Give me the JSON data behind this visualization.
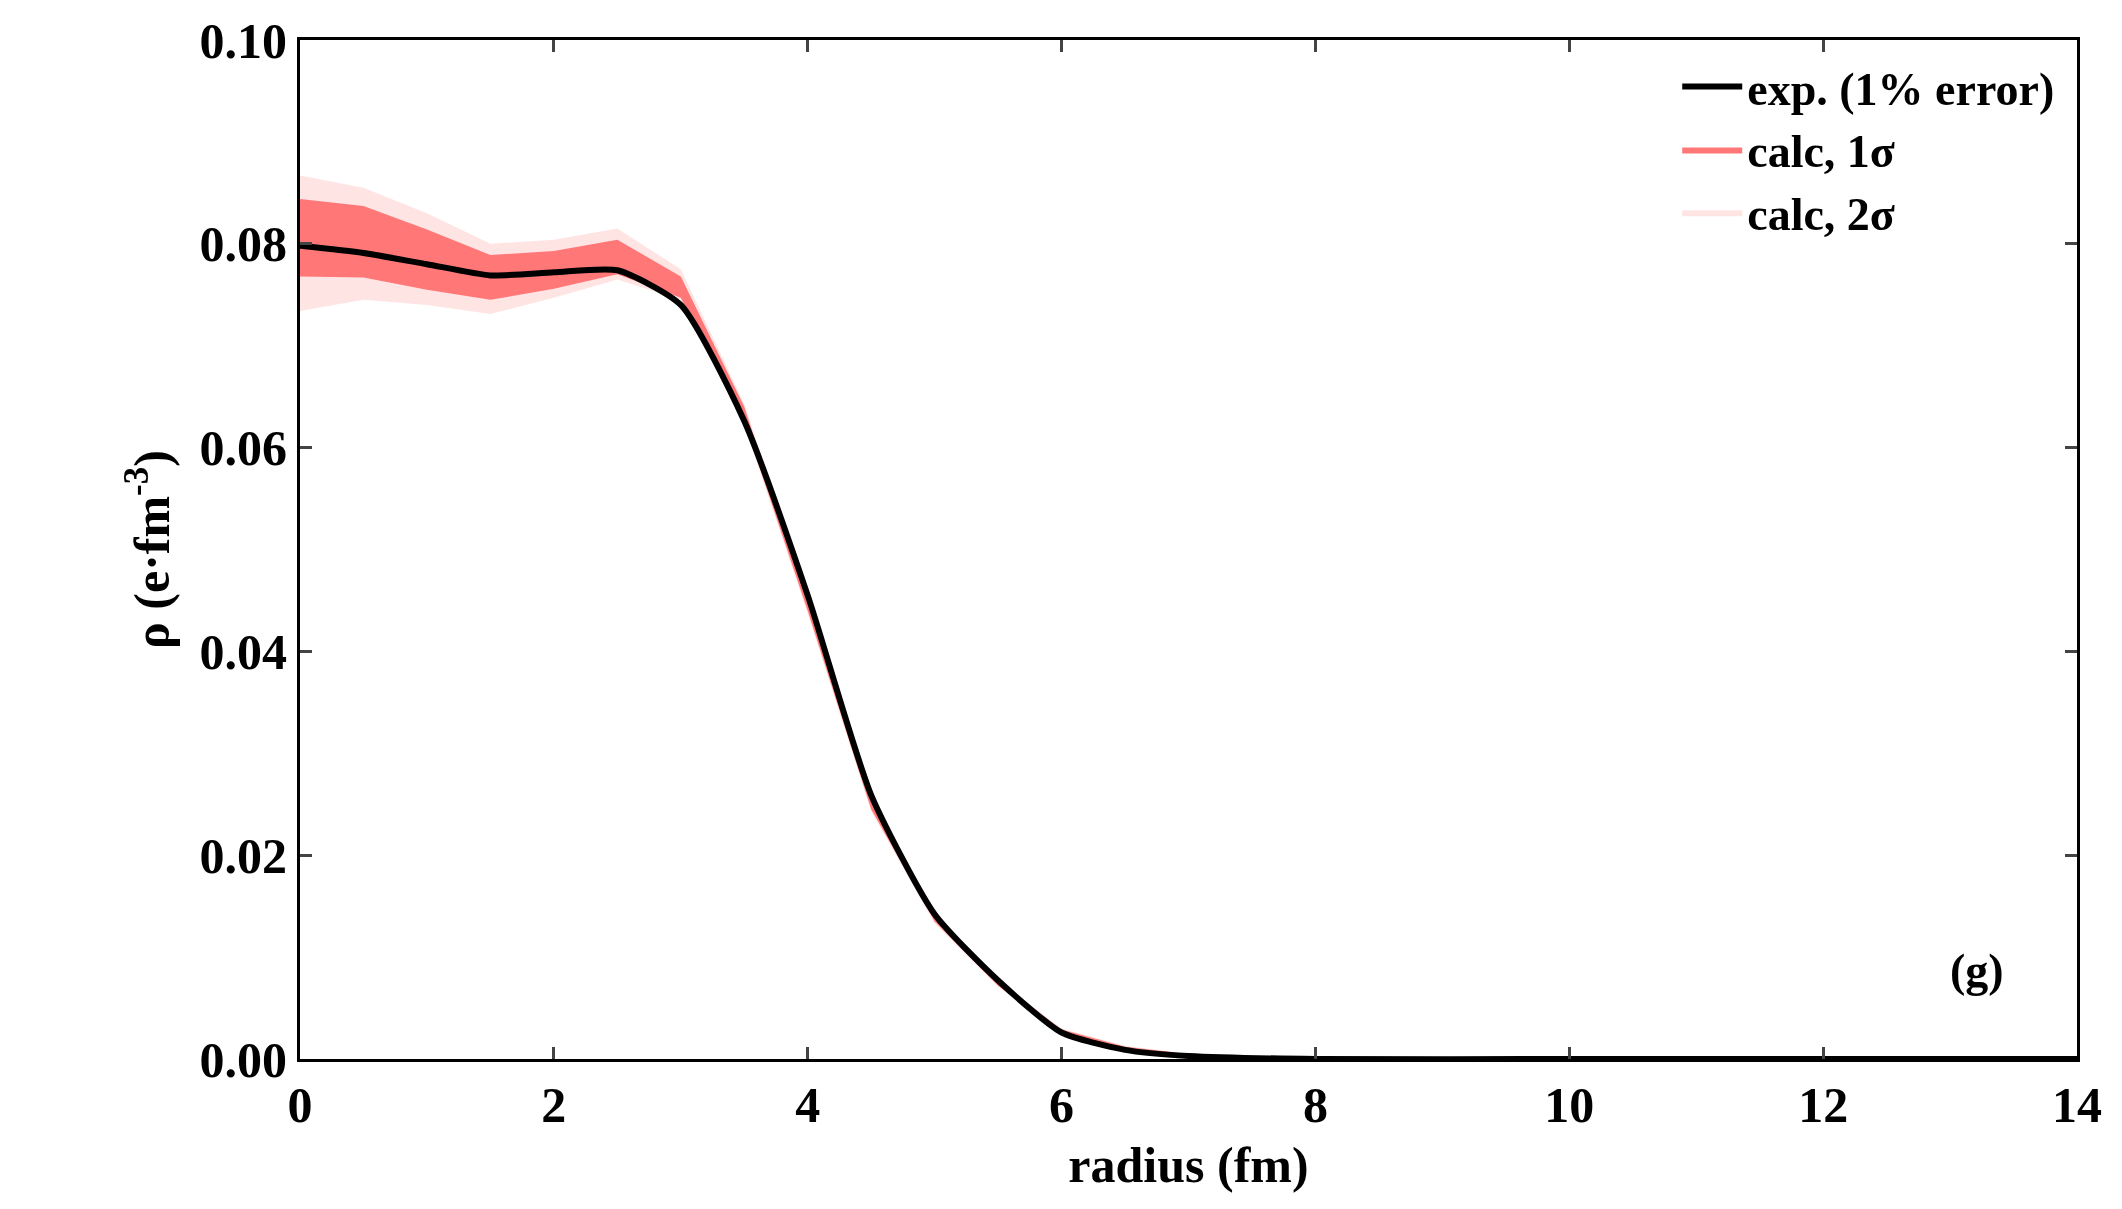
{
  "chart_data": {
    "type": "line",
    "xlabel": "radius (fm)",
    "ylabel": "ρ (e·fm$^{-3}$)",
    "x": [
      0,
      0.5,
      1,
      1.5,
      2,
      2.5,
      3,
      3.5,
      4,
      4.5,
      5,
      5.5,
      6,
      6.5,
      7,
      8,
      10,
      14
    ],
    "series": [
      {
        "name": "calc, 2σ",
        "type": "area",
        "color": "#ffe4e4",
        "values": [
          null,
          null,
          null,
          null,
          null,
          null,
          null,
          null,
          null,
          null,
          null,
          null,
          null,
          null,
          null,
          null,
          null,
          null
        ],
        "lower": [
          0.0734,
          0.0745,
          0.074,
          0.0731,
          0.0747,
          0.0765,
          0.0745,
          0.0622,
          0.0437,
          0.0243,
          0.0133,
          0.0071,
          0.0024,
          0.0008,
          0.0003,
          0,
          0,
          0
        ],
        "upper": [
          0.0867,
          0.0855,
          0.083,
          0.08,
          0.0804,
          0.0815,
          0.0775,
          0.0643,
          0.0453,
          0.0255,
          0.0141,
          0.0077,
          0.003,
          0.0013,
          0.0005,
          0.0001,
          0,
          0
        ]
      },
      {
        "name": "calc, 1σ",
        "type": "area",
        "color": "#ff7777",
        "values": [
          null,
          null,
          null,
          null,
          null,
          null,
          null,
          null,
          null,
          null,
          null,
          null,
          null,
          null,
          null,
          null,
          null,
          null
        ],
        "lower": [
          0.0768,
          0.0767,
          0.0755,
          0.0745,
          0.0756,
          0.077,
          0.0747,
          0.0625,
          0.044,
          0.0245,
          0.0135,
          0.0072,
          0.0025,
          0.0009,
          0.0003,
          0,
          0,
          0
        ],
        "upper": [
          0.0844,
          0.0837,
          0.0814,
          0.0789,
          0.0793,
          0.0804,
          0.0768,
          0.064,
          0.045,
          0.0253,
          0.014,
          0.0076,
          0.0029,
          0.0012,
          0.0005,
          0.0001,
          0,
          0
        ]
      },
      {
        "name": "exp. (1% error)",
        "color": "#000000",
        "values": [
          0.0798,
          0.0791,
          0.078,
          0.0769,
          0.0772,
          0.0774,
          0.074,
          0.0626,
          0.0455,
          0.0259,
          0.0142,
          0.0077,
          0.0026,
          0.0009,
          0.0003,
          0,
          0,
          0
        ]
      }
    ],
    "xlim": [
      0,
      14
    ],
    "xticks": [
      0,
      2,
      4,
      6,
      8,
      10,
      12,
      14
    ],
    "ylim": [
      0,
      0.1
    ],
    "yticks": [
      {
        "value": 0,
        "label": "0.00"
      },
      {
        "value": 0.02,
        "label": "0.02"
      },
      {
        "value": 0.04,
        "label": "0.04"
      },
      {
        "value": 0.06,
        "label": "0.06"
      },
      {
        "value": 0.08,
        "label": "0.08"
      },
      {
        "value": 0.1,
        "label": "0.10"
      }
    ],
    "annotations": [
      "(g)"
    ],
    "legend": "top right",
    "marker": "none",
    "line_style": "solid"
  }
}
